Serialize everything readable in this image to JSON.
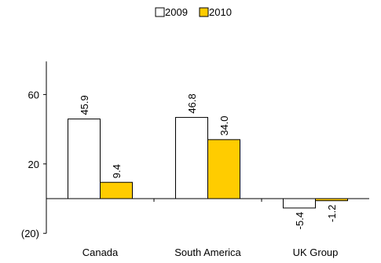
{
  "chart_data": {
    "type": "bar",
    "categories": [
      "Canada",
      "South America",
      "UK Group"
    ],
    "series": [
      {
        "name": "2009",
        "values": [
          45.9,
          46.8,
          -5.4
        ],
        "labels": [
          "45.9",
          "46.8",
          "-5.4"
        ]
      },
      {
        "name": "2010",
        "values": [
          9.4,
          34.0,
          -1.2
        ],
        "labels": [
          "9.4",
          "34.0",
          "-1.2"
        ]
      }
    ],
    "y_ticks": [
      {
        "value": 60,
        "label": "60"
      },
      {
        "value": 20,
        "label": "20"
      },
      {
        "value": -20,
        "label": "(20)"
      }
    ],
    "ylim": [
      -20,
      80
    ],
    "legend_position": "top-center",
    "grid": false,
    "colors": {
      "2009": "#ffffff",
      "2010": "#ffcc00",
      "outline": "#000000"
    }
  }
}
